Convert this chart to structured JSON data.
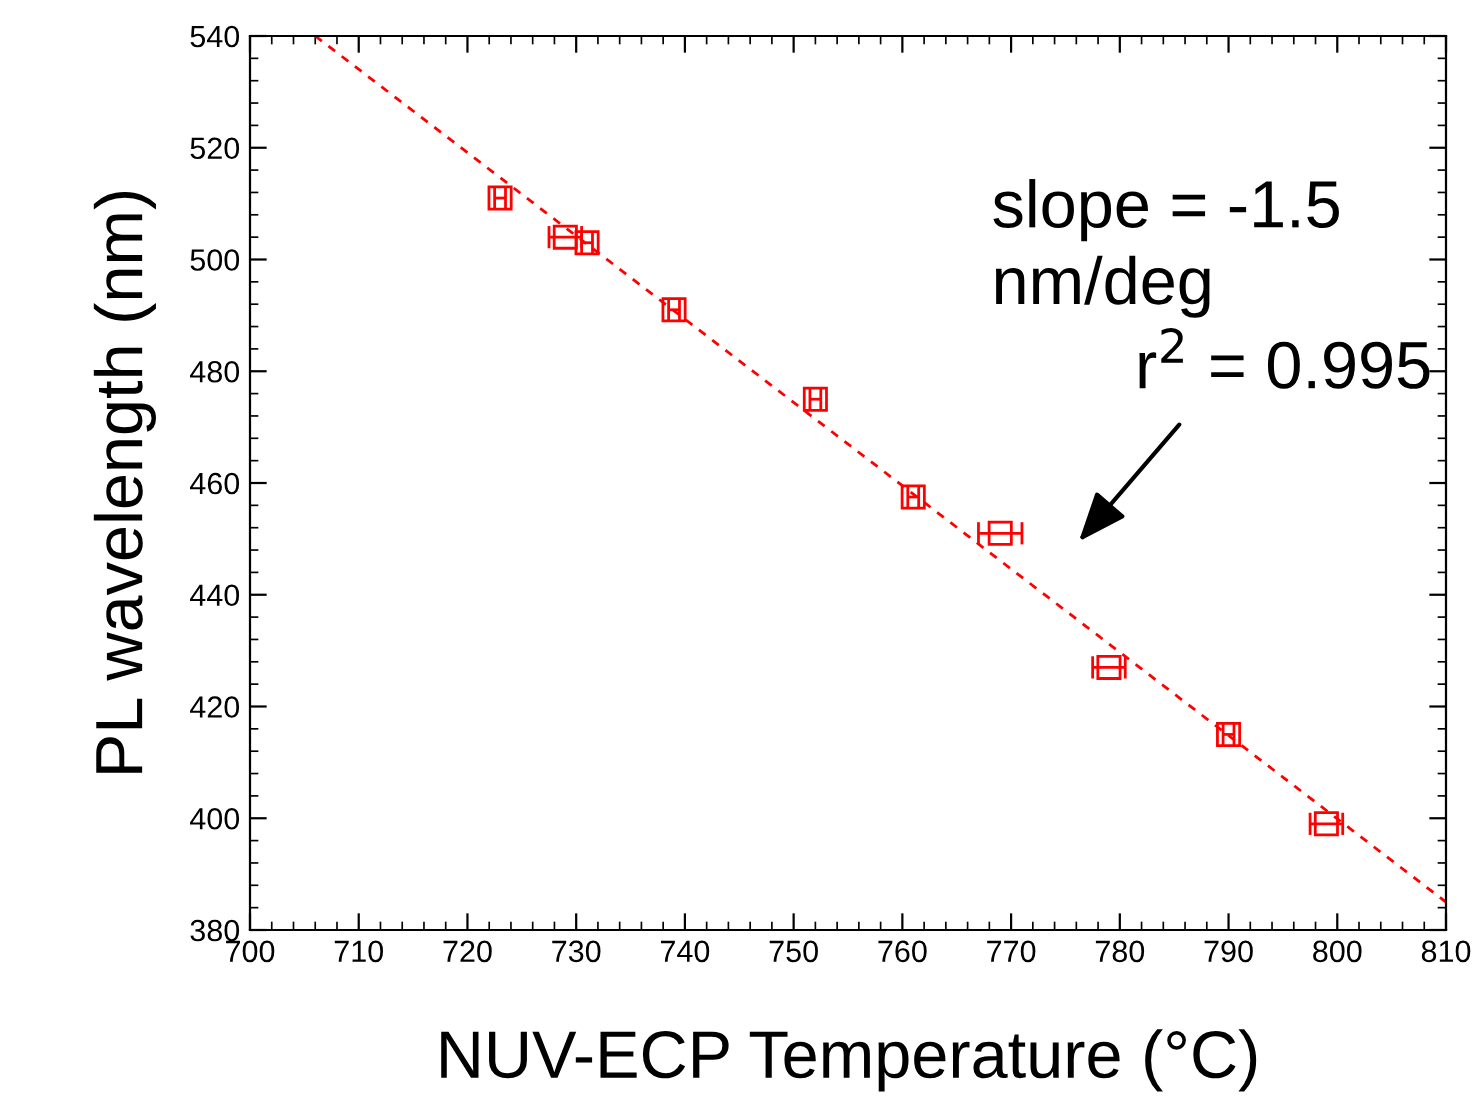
{
  "chart_data": {
    "type": "scatter",
    "xlabel": "NUV-ECP Temperature (°C)",
    "ylabel": "PL wavelength (nm)",
    "xlim": [
      700,
      810
    ],
    "xticks": [
      700,
      710,
      720,
      730,
      740,
      750,
      760,
      770,
      780,
      790,
      800,
      810
    ],
    "ylim": [
      380,
      540
    ],
    "yticks": [
      380,
      400,
      420,
      440,
      460,
      480,
      500,
      520,
      540
    ],
    "grid": false,
    "legend": false,
    "series": [
      {
        "color": "#ff0000",
        "marker": "square",
        "x": [
          723,
          729,
          731,
          739,
          752,
          761,
          769,
          779,
          790,
          799
        ],
        "values": [
          511,
          504,
          503,
          491,
          475,
          457.5,
          451,
          427,
          415,
          399
        ],
        "xerrors": [
          0.5,
          1.5,
          0.5,
          0.5,
          0.5,
          0.5,
          2,
          1.5,
          0.5,
          1.5
        ]
      },
      {
        "type": "line",
        "color": "#ff0000",
        "marker": "none",
        "line_style": "dashed",
        "x": [
          706,
          810
        ],
        "values": [
          540,
          385
        ]
      }
    ],
    "annotations": [
      "slope = -1.5\nnm/deg",
      "r$^{2}$ = 0.995"
    ]
  }
}
